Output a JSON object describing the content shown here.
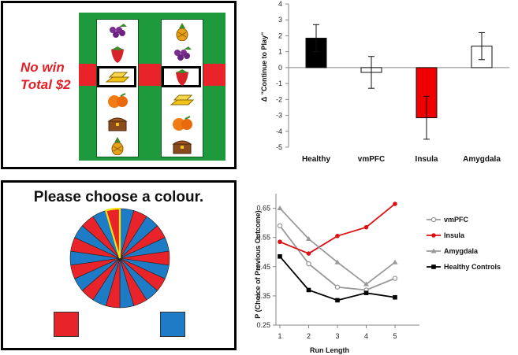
{
  "slot": {
    "result_line1": "No win",
    "result_line2": "Total $2",
    "reels": [
      {
        "symbols": [
          "grapes-icon",
          "strawberry-icon",
          "gold-bars-icon",
          "orange-icon",
          "treasure-chest-icon",
          "pineapple-icon"
        ]
      },
      {
        "symbols": [
          "pineapple-icon",
          "grapes-icon",
          "strawberry-icon",
          "gold-bars-icon",
          "orange-icon",
          "treasure-chest-icon"
        ]
      }
    ]
  },
  "wheel": {
    "prompt": "Please choose a colour.",
    "segment_count": 22,
    "colors": {
      "red": "#e8232a",
      "blue": "#1e7bc6",
      "highlight": "#f5e400"
    },
    "options": [
      "red-choice",
      "blue-choice"
    ]
  },
  "chart_data": [
    {
      "type": "bar",
      "categories": [
        "Healthy",
        "vmPFC",
        "Insula",
        "Amygdala"
      ],
      "values": [
        1.85,
        -0.3,
        -3.15,
        1.35
      ],
      "errors": [
        0.85,
        1.0,
        1.35,
        0.85
      ],
      "bar_colors": [
        "#000000",
        "#ffffff",
        "#ee0000",
        "#ffffff"
      ],
      "ylabel": "Δ \"Continue to Play\"",
      "xlabel": "",
      "ylim": [
        -5,
        4
      ],
      "yticks": [
        "4",
        "3",
        "2",
        "1",
        "0",
        "-1",
        "-2",
        "-3",
        "-4",
        "-5"
      ]
    },
    {
      "type": "line",
      "x": [
        1,
        2,
        3,
        4,
        5
      ],
      "xticks": [
        "1",
        "2",
        "3",
        "4",
        "5"
      ],
      "xlabel": "Run Length",
      "ylabel": "P (Choice of Previous Outcome)",
      "ylim": [
        0.25,
        0.7
      ],
      "yticks": [
        "0.65",
        "0.55",
        "0.45",
        "0.35",
        "0.25"
      ],
      "legend_position": "right",
      "series": [
        {
          "name": "vmPFC",
          "values": [
            0.59,
            0.46,
            0.38,
            0.37,
            0.41
          ],
          "color": "#999999",
          "marker": "open-circle"
        },
        {
          "name": "Insula",
          "values": [
            0.535,
            0.495,
            0.555,
            0.585,
            0.665
          ],
          "color": "#dd1111",
          "marker": "circle"
        },
        {
          "name": "Amygdala",
          "values": [
            0.65,
            0.545,
            0.465,
            0.39,
            0.465
          ],
          "color": "#999999",
          "marker": "triangle"
        },
        {
          "name": "Healthy Controls",
          "values": [
            0.485,
            0.37,
            0.335,
            0.36,
            0.345
          ],
          "color": "#000000",
          "marker": "square"
        }
      ]
    }
  ]
}
